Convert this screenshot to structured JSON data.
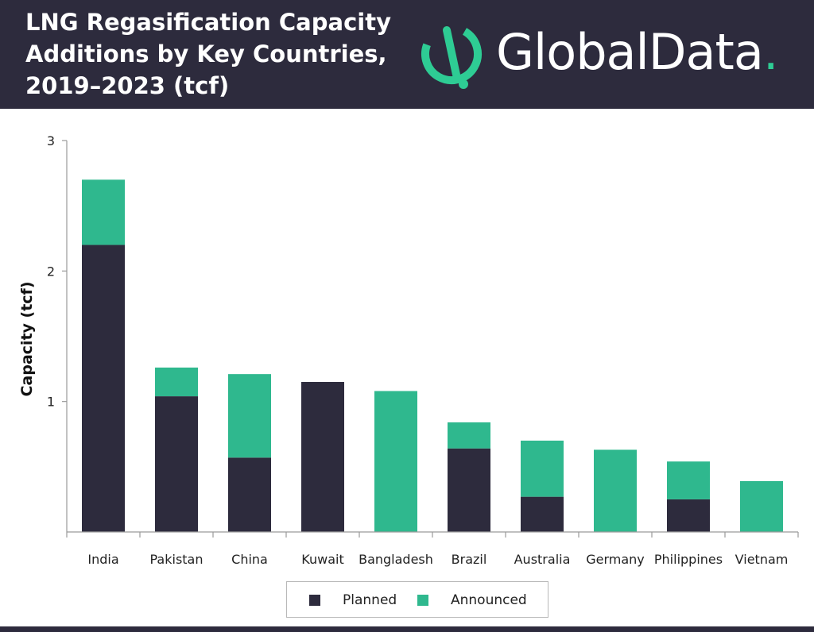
{
  "header": {
    "title": "LNG Regasification Capacity\nAdditions by Key Countries,\n2019–2023 (tcf)",
    "brand": "GlobalData",
    "brand_dot": "."
  },
  "colors": {
    "header_bg": "#2d2b3d",
    "planned": "#2d2b3d",
    "announced": "#2fb88e",
    "brand": "#2ecc94"
  },
  "chart_data": {
    "type": "bar",
    "stacked": true,
    "categories": [
      "India",
      "Pakistan",
      "China",
      "Kuwait",
      "Bangladesh",
      "Brazil",
      "Australia",
      "Germany",
      "Philippines",
      "Vietnam"
    ],
    "series": [
      {
        "name": "Planned",
        "color": "#2d2b3d",
        "values": [
          2.2,
          1.04,
          0.57,
          1.15,
          0,
          0.64,
          0.27,
          0,
          0.25,
          0
        ]
      },
      {
        "name": "Announced",
        "color": "#2fb88e",
        "values": [
          0.5,
          0.22,
          0.64,
          0,
          1.08,
          0.2,
          0.43,
          0.63,
          0.29,
          0.39
        ]
      }
    ],
    "ylabel": "Capacity (tcf)",
    "xlabel": "",
    "ylim": [
      0,
      3
    ],
    "yticks": [
      1,
      2,
      3
    ],
    "grid": false,
    "legend_position": "bottom"
  }
}
